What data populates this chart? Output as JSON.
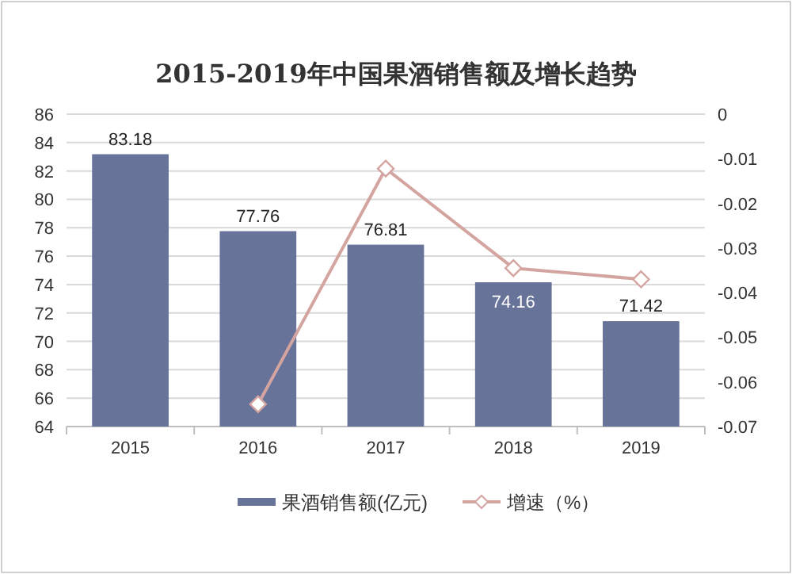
{
  "chart_data": {
    "type": "bar",
    "title": "2015-2019年中国果酒销售额及增长趋势",
    "categories": [
      "2015",
      "2016",
      "2017",
      "2018",
      "2019"
    ],
    "series": [
      {
        "name": "果酒销售额(亿元)",
        "color": "#68739a",
        "values": [
          83.18,
          77.76,
          76.81,
          74.16,
          71.42
        ],
        "value_labels": [
          "83.18",
          "77.76",
          "76.81",
          "74.16",
          "71.42"
        ]
      },
      {
        "name": "增速（%）",
        "type": "line",
        "axis": "y2",
        "color": "#d4a5a0",
        "marker": "diamond",
        "values": [
          null,
          -0.065,
          -0.0122,
          -0.0345,
          -0.037
        ]
      }
    ],
    "ylim": [
      64,
      86
    ],
    "yticks": [
      64,
      66,
      68,
      70,
      72,
      74,
      76,
      78,
      80,
      82,
      84,
      86
    ],
    "y2lim": [
      -0.07,
      0
    ],
    "y2ticks": [
      -0.07,
      -0.06,
      -0.05,
      -0.04,
      -0.03,
      -0.02,
      -0.01,
      0
    ],
    "grid": "y",
    "legend": "bottom"
  }
}
